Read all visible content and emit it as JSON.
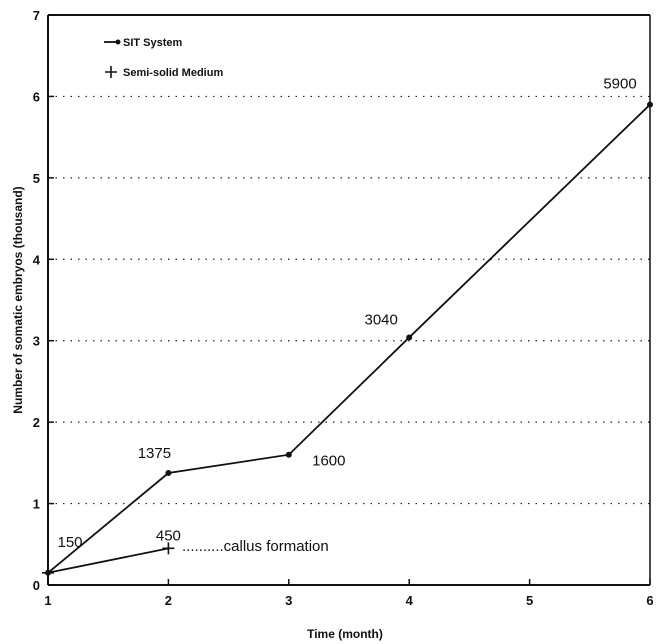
{
  "chart_data": {
    "type": "line",
    "xlabel": "Time (month)",
    "ylabel": "Number of somatic embryos (thousand)",
    "xlim": [
      1,
      6
    ],
    "ylim": [
      0,
      7
    ],
    "x_ticks": [
      "1",
      "2",
      "3",
      "4",
      "5",
      "6"
    ],
    "y_ticks": [
      "0",
      "1",
      "2",
      "3",
      "4",
      "5",
      "6",
      "7"
    ],
    "grid": "horizontal dotted",
    "legend_position": "top-left",
    "series": [
      {
        "name": "SIT System",
        "marker": "dot",
        "x": [
          1,
          2,
          3,
          4,
          6
        ],
        "y": [
          0.15,
          1.375,
          1.6,
          3.04,
          5.9
        ],
        "labels": [
          "150",
          "1375",
          "1600",
          "3040",
          "5900"
        ]
      },
      {
        "name": "Semi-solid Medium",
        "marker": "plus",
        "x": [
          1,
          2
        ],
        "y": [
          0.15,
          0.45
        ],
        "labels": [
          "",
          "450"
        ]
      }
    ],
    "annotations": [
      {
        "text": "..........callus formation"
      }
    ]
  }
}
